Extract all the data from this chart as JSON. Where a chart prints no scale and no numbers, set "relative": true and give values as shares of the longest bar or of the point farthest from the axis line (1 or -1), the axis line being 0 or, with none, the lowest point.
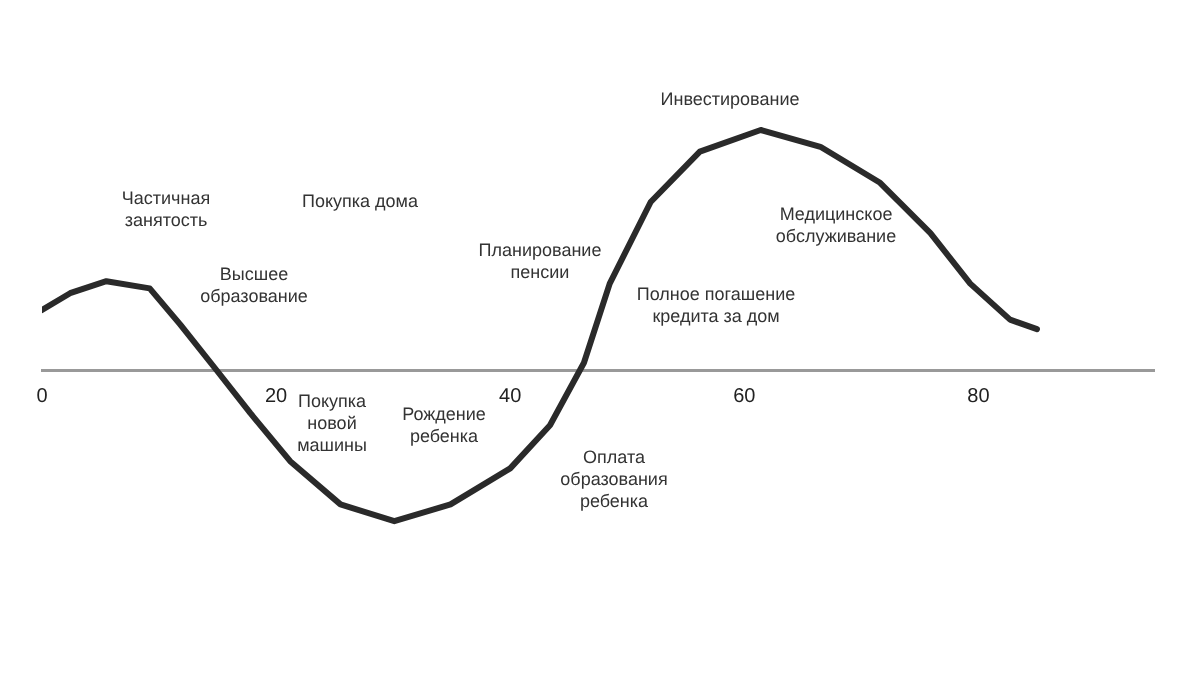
{
  "chart_data": {
    "type": "line",
    "relative": true,
    "tick_labels": "x",
    "grid": false,
    "legend": false,
    "marker": "none",
    "line_style": "solid",
    "xlim": [
      0,
      95
    ],
    "xticks": [
      0,
      20,
      40,
      60,
      80
    ],
    "x": [
      0,
      2.4,
      5.5,
      9.2,
      11.8,
      14.9,
      17.8,
      21.2,
      25.5,
      30.1,
      34.9,
      40,
      43.4,
      46.3,
      48.5,
      52,
      56.2,
      61.4,
      66.5,
      71.6,
      75.9,
      79.3,
      82.7,
      85
    ],
    "series": [
      {
        "color": "#2a2a2a",
        "values": [
          0.25,
          0.32,
          0.37,
          0.34,
          0.19,
          0,
          -0.18,
          -0.38,
          -0.56,
          -0.63,
          -0.56,
          -0.41,
          -0.23,
          0.03,
          0.36,
          0.7,
          0.91,
          1,
          0.93,
          0.78,
          0.57,
          0.36,
          0.21,
          0.17
        ]
      }
    ],
    "annotations": [
      "Частичная\nзанятость",
      "Покупка дома",
      "Высшее\nобразование",
      "Покупка\nновой\nмашины",
      "Рождение\nребенка",
      "Планирование\nпенсии",
      "Оплата\nобразования\nребенка",
      "Полное погашение\nкредита за дом",
      "Инвестирование",
      "Медицинское\nобслуживание"
    ]
  }
}
